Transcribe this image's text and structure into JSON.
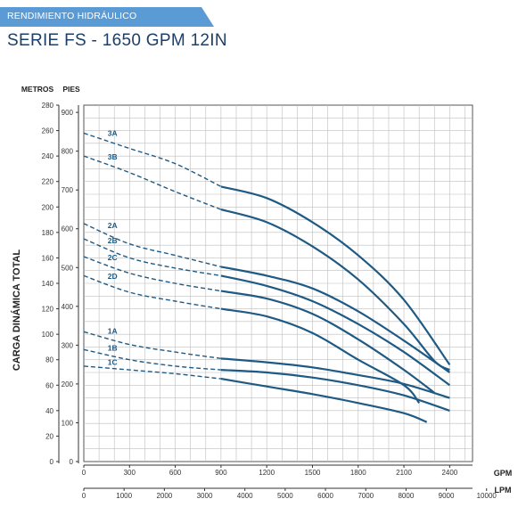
{
  "header": {
    "banner": "RENDIMIENTO HIDRÁULICO",
    "title": "SERIE FS - 1650 GPM 12IN",
    "banner_color": "#5b9bd5",
    "title_color": "#1d3f66"
  },
  "chart_data": {
    "type": "line",
    "title": "SERIE FS - 1650 GPM 12IN",
    "ylabel": "CARGA DINÁMICA TOTAL",
    "y_unit_meters": "METROS",
    "y_unit_feet": "PIES",
    "x_unit_gpm": "GPM",
    "x_unit_lpm": "LPM",
    "meters_ticks": [
      "280",
      "260",
      "240",
      "220",
      "200",
      "180",
      "160",
      "140",
      "120",
      "100",
      "80",
      "60",
      "40",
      "20",
      "0"
    ],
    "feet_ticks": [
      "900",
      "800",
      "700",
      "600",
      "500",
      "400",
      "300",
      "200",
      "100",
      "0"
    ],
    "gpm_ticks": [
      "0",
      "300",
      "600",
      "900",
      "1200",
      "1500",
      "1800",
      "2100",
      "2400"
    ],
    "lpm_ticks": [
      "0",
      "1000",
      "2000",
      "3000",
      "4000",
      "5000",
      "6000",
      "7000",
      "8000",
      "9000",
      "10000"
    ],
    "xlim_gpm": [
      0,
      2550
    ],
    "ylim_m": [
      0,
      280
    ],
    "grid": true,
    "line_color": "#1f5a84",
    "series": [
      {
        "name": "3A",
        "dashed": [
          [
            0,
            258
          ],
          [
            300,
            246
          ],
          [
            600,
            234
          ],
          [
            900,
            216
          ]
        ],
        "solid": [
          [
            900,
            216
          ],
          [
            1200,
            207
          ],
          [
            1500,
            188
          ],
          [
            1800,
            162
          ],
          [
            2100,
            127
          ],
          [
            2400,
            76
          ]
        ]
      },
      {
        "name": "3B",
        "dashed": [
          [
            0,
            240
          ],
          [
            300,
            227
          ],
          [
            600,
            212
          ],
          [
            900,
            198
          ]
        ],
        "solid": [
          [
            900,
            198
          ],
          [
            1200,
            188
          ],
          [
            1500,
            169
          ],
          [
            1800,
            143
          ],
          [
            2100,
            108
          ],
          [
            2300,
            79
          ],
          [
            2400,
            72
          ]
        ]
      },
      {
        "name": "2A",
        "dashed": [
          [
            0,
            187
          ],
          [
            300,
            171
          ],
          [
            600,
            162
          ],
          [
            900,
            153
          ]
        ],
        "solid": [
          [
            900,
            153
          ],
          [
            1200,
            146
          ],
          [
            1500,
            136
          ],
          [
            1800,
            118
          ],
          [
            2100,
            95
          ],
          [
            2400,
            70
          ]
        ]
      },
      {
        "name": "2B",
        "dashed": [
          [
            0,
            175
          ],
          [
            300,
            160
          ],
          [
            600,
            152
          ],
          [
            900,
            146
          ]
        ],
        "solid": [
          [
            900,
            146
          ],
          [
            1200,
            138
          ],
          [
            1500,
            126
          ],
          [
            1800,
            108
          ],
          [
            2100,
            86
          ],
          [
            2400,
            60
          ]
        ]
      },
      {
        "name": "2C",
        "dashed": [
          [
            0,
            161
          ],
          [
            300,
            148
          ],
          [
            600,
            140
          ],
          [
            900,
            134
          ]
        ],
        "solid": [
          [
            900,
            134
          ],
          [
            1200,
            128
          ],
          [
            1500,
            116
          ],
          [
            1800,
            96
          ],
          [
            2100,
            72
          ],
          [
            2300,
            54
          ]
        ]
      },
      {
        "name": "2D",
        "dashed": [
          [
            0,
            146
          ],
          [
            300,
            133
          ],
          [
            600,
            126
          ],
          [
            900,
            120
          ]
        ],
        "solid": [
          [
            900,
            120
          ],
          [
            1200,
            114
          ],
          [
            1500,
            101
          ],
          [
            1800,
            80
          ],
          [
            2100,
            60
          ],
          [
            2200,
            46
          ]
        ]
      },
      {
        "name": "1A",
        "dashed": [
          [
            0,
            102
          ],
          [
            300,
            92
          ],
          [
            600,
            86
          ],
          [
            900,
            81
          ]
        ],
        "solid": [
          [
            900,
            81
          ],
          [
            1200,
            78
          ],
          [
            1500,
            74
          ],
          [
            1800,
            68
          ],
          [
            2100,
            61
          ],
          [
            2400,
            50
          ]
        ]
      },
      {
        "name": "1B",
        "dashed": [
          [
            0,
            88
          ],
          [
            300,
            80
          ],
          [
            600,
            75
          ],
          [
            900,
            72
          ]
        ],
        "solid": [
          [
            900,
            72
          ],
          [
            1200,
            70
          ],
          [
            1500,
            66
          ],
          [
            1800,
            60
          ],
          [
            2100,
            52
          ],
          [
            2400,
            40
          ]
        ]
      },
      {
        "name": "1C",
        "dashed": [
          [
            0,
            75
          ],
          [
            300,
            72
          ],
          [
            600,
            69
          ],
          [
            900,
            65
          ]
        ],
        "solid": [
          [
            900,
            65
          ],
          [
            1200,
            59
          ],
          [
            1500,
            53
          ],
          [
            1800,
            46
          ],
          [
            2100,
            38
          ],
          [
            2250,
            31
          ]
        ]
      }
    ]
  }
}
